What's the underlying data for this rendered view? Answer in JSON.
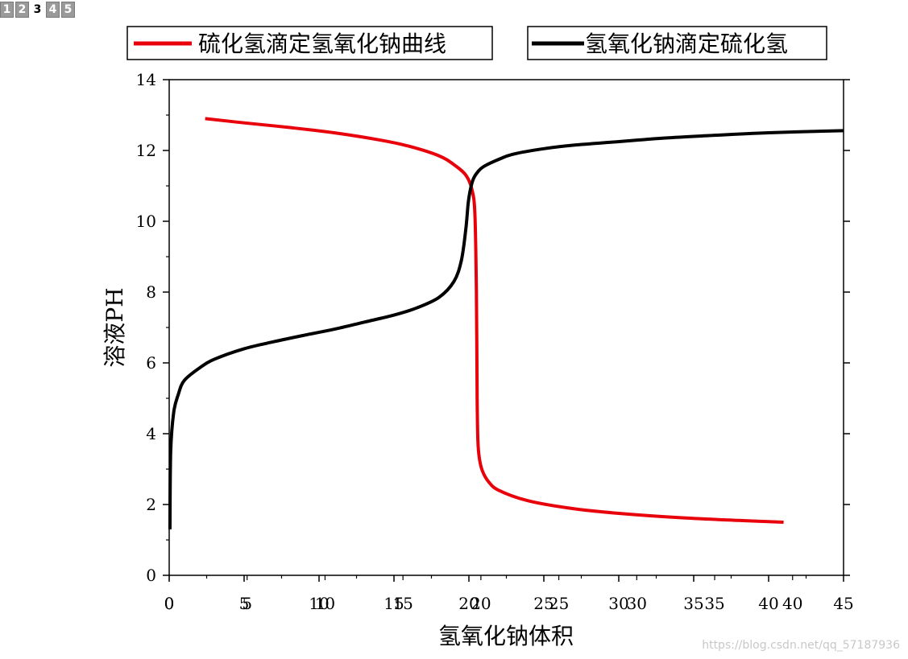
{
  "page_tabs": [
    {
      "label": "1",
      "active": false
    },
    {
      "label": "2",
      "active": false
    },
    {
      "label": "3",
      "active": true
    },
    {
      "label": "4",
      "active": false
    },
    {
      "label": "5",
      "active": false
    }
  ],
  "watermark": "https://blog.csdn.net/qq_57187936",
  "chart_data": {
    "type": "line",
    "xlabel": "氢氧化钠体积",
    "ylabel": "溶液PH",
    "xlim": [
      0,
      45
    ],
    "ylim": [
      0,
      14
    ],
    "y_ticks": [
      "0",
      "2",
      "4",
      "6",
      "8",
      "10",
      "12",
      "14"
    ],
    "x_ticks_primary": [
      {
        "value": 0,
        "label": "0"
      },
      {
        "value": 5,
        "label": "5"
      },
      {
        "value": 10,
        "label": "10"
      },
      {
        "value": 15,
        "label": "15"
      },
      {
        "value": 20,
        "label": "20"
      },
      {
        "value": 25,
        "label": "25"
      },
      {
        "value": 30,
        "label": "30"
      },
      {
        "value": 35,
        "label": "35"
      },
      {
        "value": 40,
        "label": "40"
      },
      {
        "value": 45,
        "label": "45"
      }
    ],
    "x_ticks_secondary": [
      {
        "value": 0,
        "label": "0"
      },
      {
        "value": 5.2,
        "label": "5"
      },
      {
        "value": 10.4,
        "label": "10"
      },
      {
        "value": 15.6,
        "label": "15"
      },
      {
        "value": 20.8,
        "label": "20"
      },
      {
        "value": 26.0,
        "label": "25"
      },
      {
        "value": 31.2,
        "label": "30"
      },
      {
        "value": 36.4,
        "label": "35"
      },
      {
        "value": 41.6,
        "label": "40"
      }
    ],
    "series": [
      {
        "name": "硫化氢滴定氢氧化钠曲线",
        "color": "#e8000b",
        "x": [
          2.4,
          5,
          8,
          11,
          14,
          16,
          18,
          19,
          19.8,
          20.2,
          20.4,
          20.5,
          20.55,
          20.6,
          20.7,
          20.9,
          21.3,
          22,
          24,
          27,
          30,
          34,
          38,
          41
        ],
        "y": [
          12.9,
          12.78,
          12.65,
          12.5,
          12.3,
          12.12,
          11.85,
          11.6,
          11.3,
          10.9,
          10.2,
          8.0,
          5.0,
          3.8,
          3.3,
          2.95,
          2.65,
          2.4,
          2.1,
          1.88,
          1.75,
          1.63,
          1.55,
          1.5
        ]
      },
      {
        "name": "氢氧化钠滴定硫化氢",
        "color": "#000000",
        "x": [
          0.05,
          0.1,
          0.3,
          0.6,
          1,
          2,
          3,
          5,
          7,
          9,
          11,
          13,
          15,
          16.5,
          18,
          19,
          19.5,
          19.8,
          19.95,
          20.1,
          20.3,
          20.6,
          21,
          22,
          23,
          25,
          27,
          30,
          33,
          36,
          40,
          45
        ],
        "y": [
          1.3,
          3.5,
          4.6,
          5.1,
          5.5,
          5.85,
          6.1,
          6.4,
          6.6,
          6.78,
          6.95,
          7.15,
          7.35,
          7.55,
          7.85,
          8.3,
          8.9,
          9.8,
          10.5,
          10.9,
          11.2,
          11.4,
          11.55,
          11.75,
          11.9,
          12.05,
          12.15,
          12.25,
          12.35,
          12.42,
          12.5,
          12.56
        ]
      }
    ]
  }
}
